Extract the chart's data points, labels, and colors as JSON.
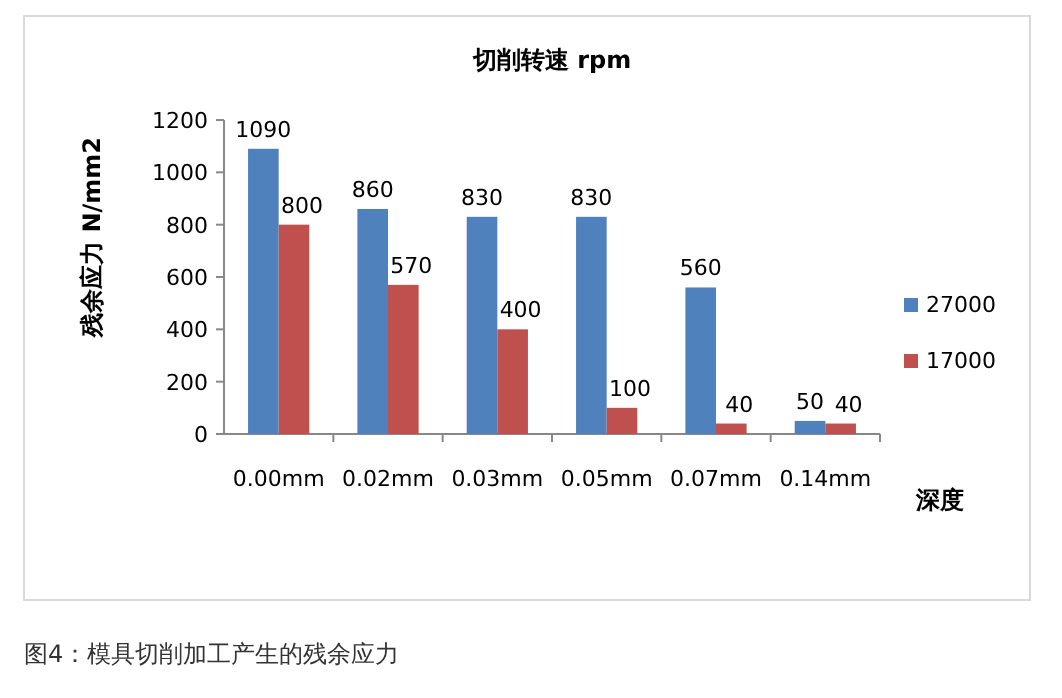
{
  "chart_data": {
    "type": "bar",
    "title": "切削转速 rpm",
    "ylabel": "残余应力 N/mm2",
    "xlabel": "深度",
    "categories": [
      "0.00mm",
      "0.02mm",
      "0.03mm",
      "0.05mm",
      "0.07mm",
      "0.14mm"
    ],
    "series": [
      {
        "name": "27000",
        "color": "#4f81bd",
        "values": [
          1090,
          860,
          830,
          830,
          560,
          50
        ]
      },
      {
        "name": "17000",
        "color": "#c0504d",
        "values": [
          800,
          570,
          400,
          100,
          40,
          40
        ]
      }
    ],
    "ylim": [
      0,
      1200
    ],
    "yticks": [
      0,
      200,
      400,
      600,
      800,
      1000,
      1200
    ],
    "data_labels": true,
    "legend": "right",
    "grid": false,
    "annotations": [
      "图4：模具切削加工产生的残余应力"
    ]
  }
}
